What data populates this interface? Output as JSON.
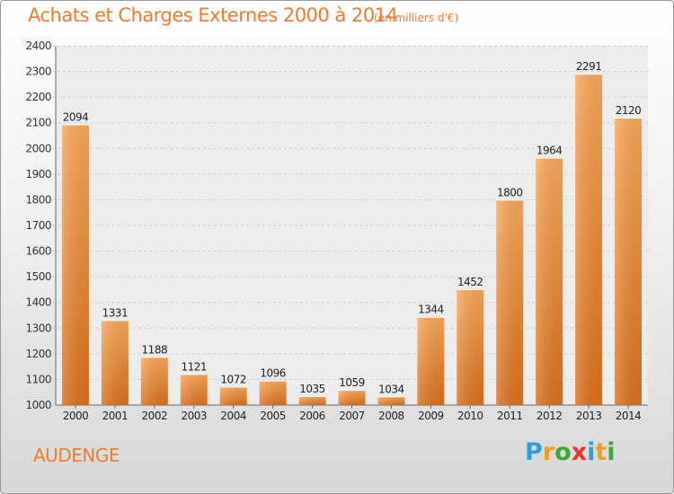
{
  "title": "Achats et Charges Externes 2000 à 2014",
  "subtitle": "(en milliers d'€)",
  "commune": "AUDENGE",
  "logo": {
    "letters": [
      "P",
      "r",
      "o",
      "x",
      "i",
      "t",
      "i"
    ],
    "colors": [
      "#2e9fd8",
      "#f0a020",
      "#3aaa35",
      "#e8362b",
      "#2e9fd8",
      "#f0a020",
      "#3aaa35"
    ]
  },
  "colors": {
    "accent": "#f07b2c",
    "bar_light": "#f9a85a",
    "bar_dark": "#d9701e"
  },
  "chart_data": {
    "type": "bar",
    "title": "Achats et Charges Externes 2000 à 2014",
    "subtitle": "(en milliers d'€)",
    "xlabel": "",
    "ylabel": "",
    "categories": [
      "2000",
      "2001",
      "2002",
      "2003",
      "2004",
      "2005",
      "2006",
      "2007",
      "2008",
      "2009",
      "2010",
      "2011",
      "2012",
      "2013",
      "2014"
    ],
    "values": [
      2094,
      1331,
      1188,
      1121,
      1072,
      1096,
      1035,
      1059,
      1034,
      1344,
      1452,
      1800,
      1964,
      2291,
      2120
    ],
    "ylim": [
      1000,
      2400
    ],
    "yticks": [
      1000,
      1100,
      1200,
      1300,
      1400,
      1500,
      1600,
      1700,
      1800,
      1900,
      2000,
      2100,
      2200,
      2300,
      2400
    ],
    "grid": true,
    "data_labels": true
  }
}
